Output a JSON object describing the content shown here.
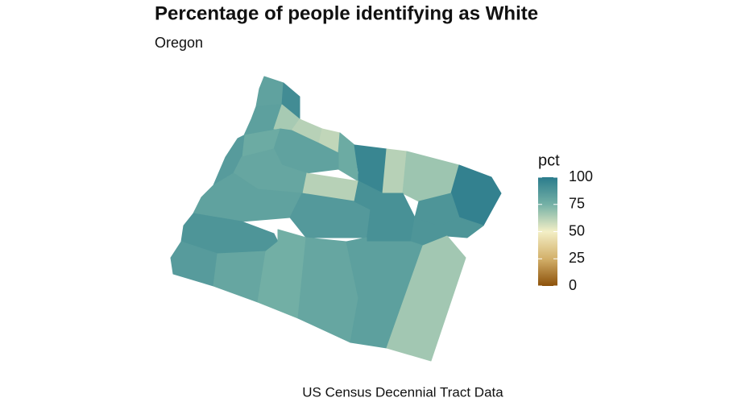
{
  "chart_data": {
    "type": "choropleth",
    "title": "Percentage of people identifying as White",
    "subtitle": "Oregon",
    "caption": "US Census Decennial Tract Data",
    "legend": {
      "title": "pct",
      "limits": [
        0,
        100
      ],
      "ticks": [
        0,
        25,
        50,
        75,
        100
      ],
      "colors": [
        "#8c510a",
        "#d3b06a",
        "#f3efc6",
        "#75b1a6",
        "#2a7b8c"
      ]
    },
    "values": [
      82,
      92,
      83,
      65,
      62,
      60,
      78,
      95,
      62,
      67,
      97,
      88,
      78,
      82,
      62,
      85,
      80,
      82,
      88,
      86,
      90,
      88,
      85,
      80,
      76,
      80,
      83,
      66
    ]
  }
}
